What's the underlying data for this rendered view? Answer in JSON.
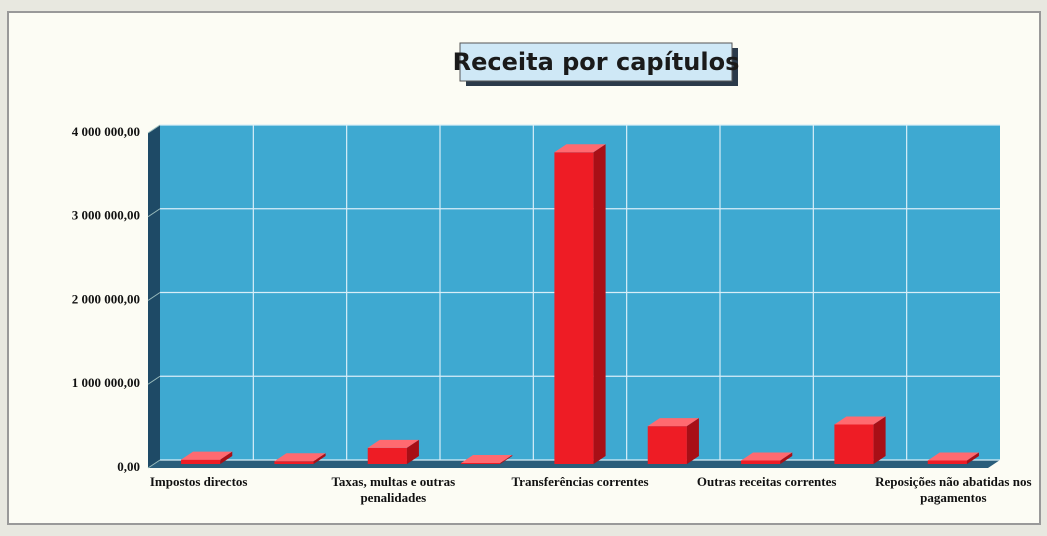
{
  "chart_data": {
    "type": "bar3d",
    "title": "Receita por capítulos",
    "categories": [
      "Impostos directos",
      null,
      "Taxas, multas e outras penalidades",
      null,
      "Transferências correntes",
      null,
      "Outras receitas correntes",
      null,
      "Reposições não abatidas nos pagamentos"
    ],
    "values": [
      100000,
      80000,
      240000,
      60000,
      3770000,
      500000,
      90000,
      520000,
      90000
    ],
    "color": "#ee1c25",
    "ylim": [
      0,
      4000000
    ],
    "yticks": [
      {
        "value": 0,
        "label": "0,00"
      },
      {
        "value": 1000000,
        "label": "1 000 000,00"
      },
      {
        "value": 2000000,
        "label": "2 000 000,00"
      },
      {
        "value": 3000000,
        "label": "3 000 000,00"
      },
      {
        "value": 4000000,
        "label": "4 000 000,00"
      }
    ],
    "grid": true
  }
}
